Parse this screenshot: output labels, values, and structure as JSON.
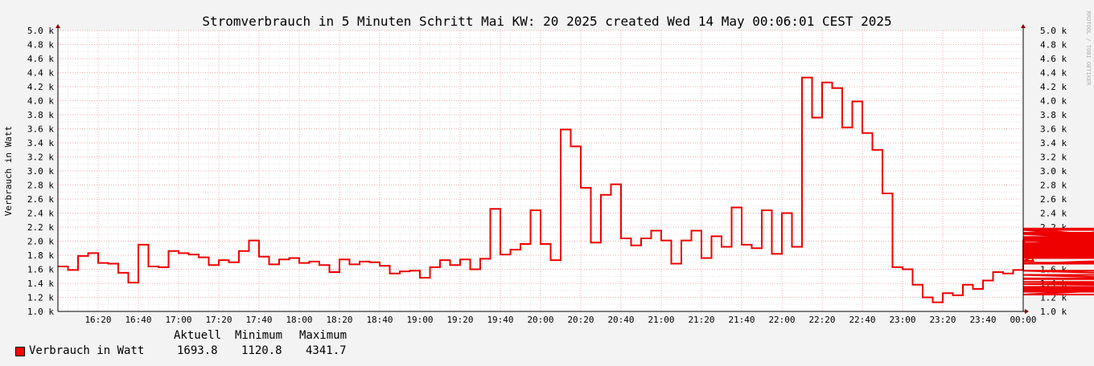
{
  "chart_data": {
    "type": "line",
    "step": true,
    "title": "Stromverbrauch in 5 Minuten Schritt Mai KW: 20 2025 created Wed 14 May 00:06:01 CEST 2025",
    "ylabel": "Verbrauch in Watt",
    "watermark": "RRDTOOL / TOBI OETIKER",
    "ylim": [
      1000,
      5000
    ],
    "yticks": [
      {
        "value": 1000,
        "label": "1.0 k"
      },
      {
        "value": 1200,
        "label": "1.2 k"
      },
      {
        "value": 1400,
        "label": "1.4 k"
      },
      {
        "value": 1600,
        "label": "1.6 k"
      },
      {
        "value": 1800,
        "label": "1.8 k"
      },
      {
        "value": 2000,
        "label": "2.0 k"
      },
      {
        "value": 2200,
        "label": "2.2 k"
      },
      {
        "value": 2400,
        "label": "2.4 k"
      },
      {
        "value": 2600,
        "label": "2.6 k"
      },
      {
        "value": 2800,
        "label": "2.8 k"
      },
      {
        "value": 3000,
        "label": "3.0 k"
      },
      {
        "value": 3200,
        "label": "3.2 k"
      },
      {
        "value": 3400,
        "label": "3.4 k"
      },
      {
        "value": 3600,
        "label": "3.6 k"
      },
      {
        "value": 3800,
        "label": "3.8 k"
      },
      {
        "value": 4000,
        "label": "4.0 k"
      },
      {
        "value": 4200,
        "label": "4.2 k"
      },
      {
        "value": 4400,
        "label": "4.4 k"
      },
      {
        "value": 4600,
        "label": "4.6 k"
      },
      {
        "value": 4800,
        "label": "4.8 k"
      },
      {
        "value": 5000,
        "label": "5.0 k"
      }
    ],
    "xticks": [
      "16:20",
      "16:40",
      "17:00",
      "17:20",
      "17:40",
      "18:00",
      "18:20",
      "18:40",
      "19:00",
      "19:20",
      "19:40",
      "20:00",
      "20:20",
      "20:40",
      "21:00",
      "21:20",
      "21:40",
      "22:00",
      "22:20",
      "22:40",
      "23:00",
      "23:20",
      "23:40",
      "00:00"
    ],
    "grid": true,
    "series": [
      {
        "name": "Verbrauch in Watt",
        "color": "#ee0000",
        "start_time": "16:05",
        "interval_minutes": 5,
        "values": [
          1640,
          1590,
          1790,
          1830,
          1690,
          1680,
          1550,
          1410,
          1950,
          1640,
          1630,
          1860,
          1830,
          1810,
          1770,
          1660,
          1730,
          1700,
          1860,
          2010,
          1780,
          1670,
          1740,
          1760,
          1690,
          1710,
          1660,
          1560,
          1740,
          1670,
          1710,
          1700,
          1650,
          1540,
          1570,
          1580,
          1480,
          1630,
          1730,
          1660,
          1740,
          1600,
          1750,
          2460,
          1810,
          1880,
          1960,
          2440,
          1960,
          1730,
          3590,
          3350,
          2760,
          1980,
          2660,
          2810,
          2040,
          1940,
          2040,
          2150,
          2010,
          1680,
          2010,
          2150,
          1760,
          2070,
          1920,
          2480,
          1950,
          1900,
          2440,
          1820,
          2400,
          1920,
          4330,
          3760,
          4260,
          4180,
          3620,
          3990,
          3540,
          3300,
          2680,
          1630,
          1600,
          1380,
          1200,
          1130,
          1260,
          1230,
          1380,
          1320,
          1440,
          1560,
          1540,
          1590,
          2020,
          1720,
          1830,
          1890,
          1870,
          1860,
          1850,
          1900,
          2160,
          2040,
          1760,
          1810,
          2060,
          1970,
          2000,
          2000,
          2180,
          1960,
          1840,
          1910,
          1790,
          1830,
          2100,
          1940,
          1930,
          2120,
          1900,
          2020,
          1680,
          1820,
          1860,
          1840,
          1830,
          1770,
          1880,
          1960,
          1870,
          1790,
          1840,
          1790,
          1840,
          1890,
          1880,
          1870,
          1840,
          1910,
          2010,
          1580,
          1390,
          1300,
          1340,
          1320,
          1280,
          1520,
          1290,
          1320,
          1460,
          1470,
          1420,
          1420,
          1310,
          1350,
          1240,
          1694
        ]
      }
    ]
  },
  "legend": {
    "headers": [
      "Aktuell",
      "Minimum",
      "Maximum"
    ],
    "rows": [
      {
        "name": "Verbrauch in Watt",
        "color": "#ff0000",
        "values": [
          "1693.8",
          "1120.8",
          "4341.7"
        ]
      }
    ]
  }
}
